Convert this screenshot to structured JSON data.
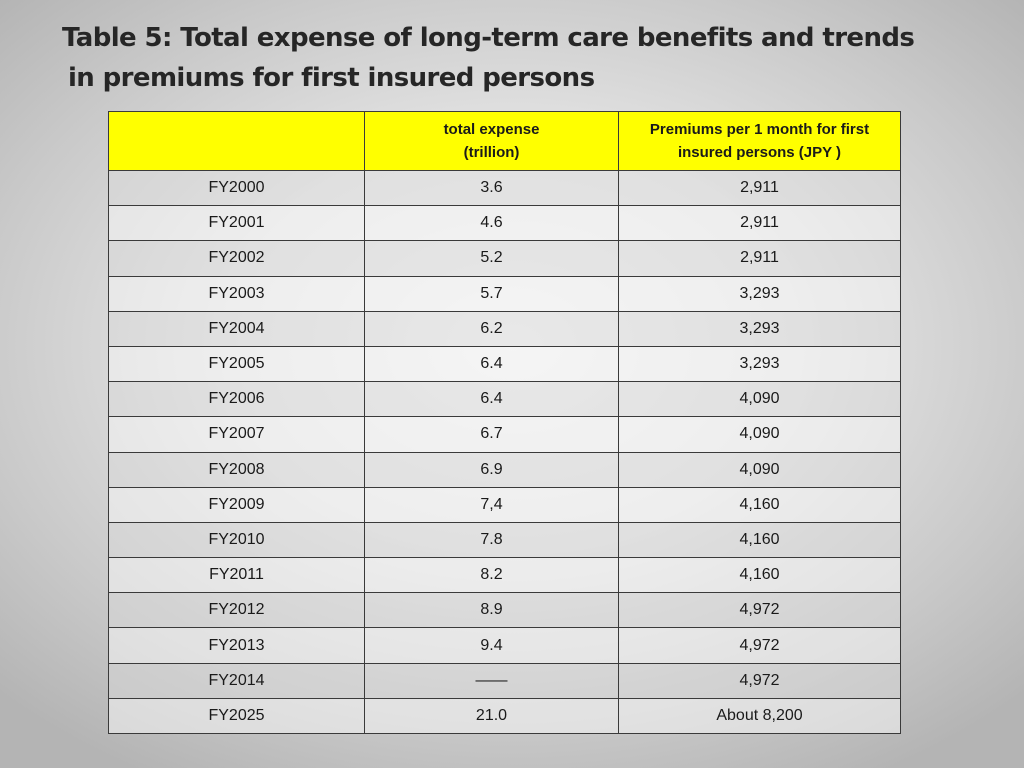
{
  "title": {
    "line1": "Table 5: Total expense of long-term care benefits and trends",
    "line2": "in premiums for first insured persons"
  },
  "table": {
    "headers": {
      "year": "",
      "expense_line1": "total expense",
      "expense_line2": "(trillion)",
      "premium_line1": "Premiums per 1 month  for first",
      "premium_line2": "insured persons   (JPY )"
    },
    "rows": [
      {
        "year": "FY2000",
        "expense": "3.6",
        "premium": "2,911"
      },
      {
        "year": "FY2001",
        "expense": "4.6",
        "premium": "2,911"
      },
      {
        "year": "FY2002",
        "expense": "5.2",
        "premium": "2,911"
      },
      {
        "year": "FY2003",
        "expense": "5.7",
        "premium": "3,293"
      },
      {
        "year": "FY2004",
        "expense": "6.2",
        "premium": "3,293"
      },
      {
        "year": "FY2005",
        "expense": "6.4",
        "premium": "3,293"
      },
      {
        "year": "FY2006",
        "expense": "6.4",
        "premium": "4,090"
      },
      {
        "year": "FY2007",
        "expense": "6.7",
        "premium": "4,090"
      },
      {
        "year": "FY2008",
        "expense": "6.9",
        "premium": "4,090"
      },
      {
        "year": "FY2009",
        "expense": "7,4",
        "premium": "4,160"
      },
      {
        "year": "FY2010",
        "expense": "7.8",
        "premium": "4,160"
      },
      {
        "year": "FY2011",
        "expense": "8.2",
        "premium": "4,160"
      },
      {
        "year": "FY2012",
        "expense": "8.9",
        "premium": "4,972"
      },
      {
        "year": "FY2013",
        "expense": "9.4",
        "premium": "4,972"
      },
      {
        "year": "FY2014",
        "expense": "——",
        "premium": "4,972"
      },
      {
        "year": "FY2025",
        "expense": "21.0",
        "premium": "About   8,200"
      }
    ]
  },
  "colors": {
    "header_bg": "#ffff00",
    "border": "#3a3a3a",
    "title_text": "#262626"
  }
}
